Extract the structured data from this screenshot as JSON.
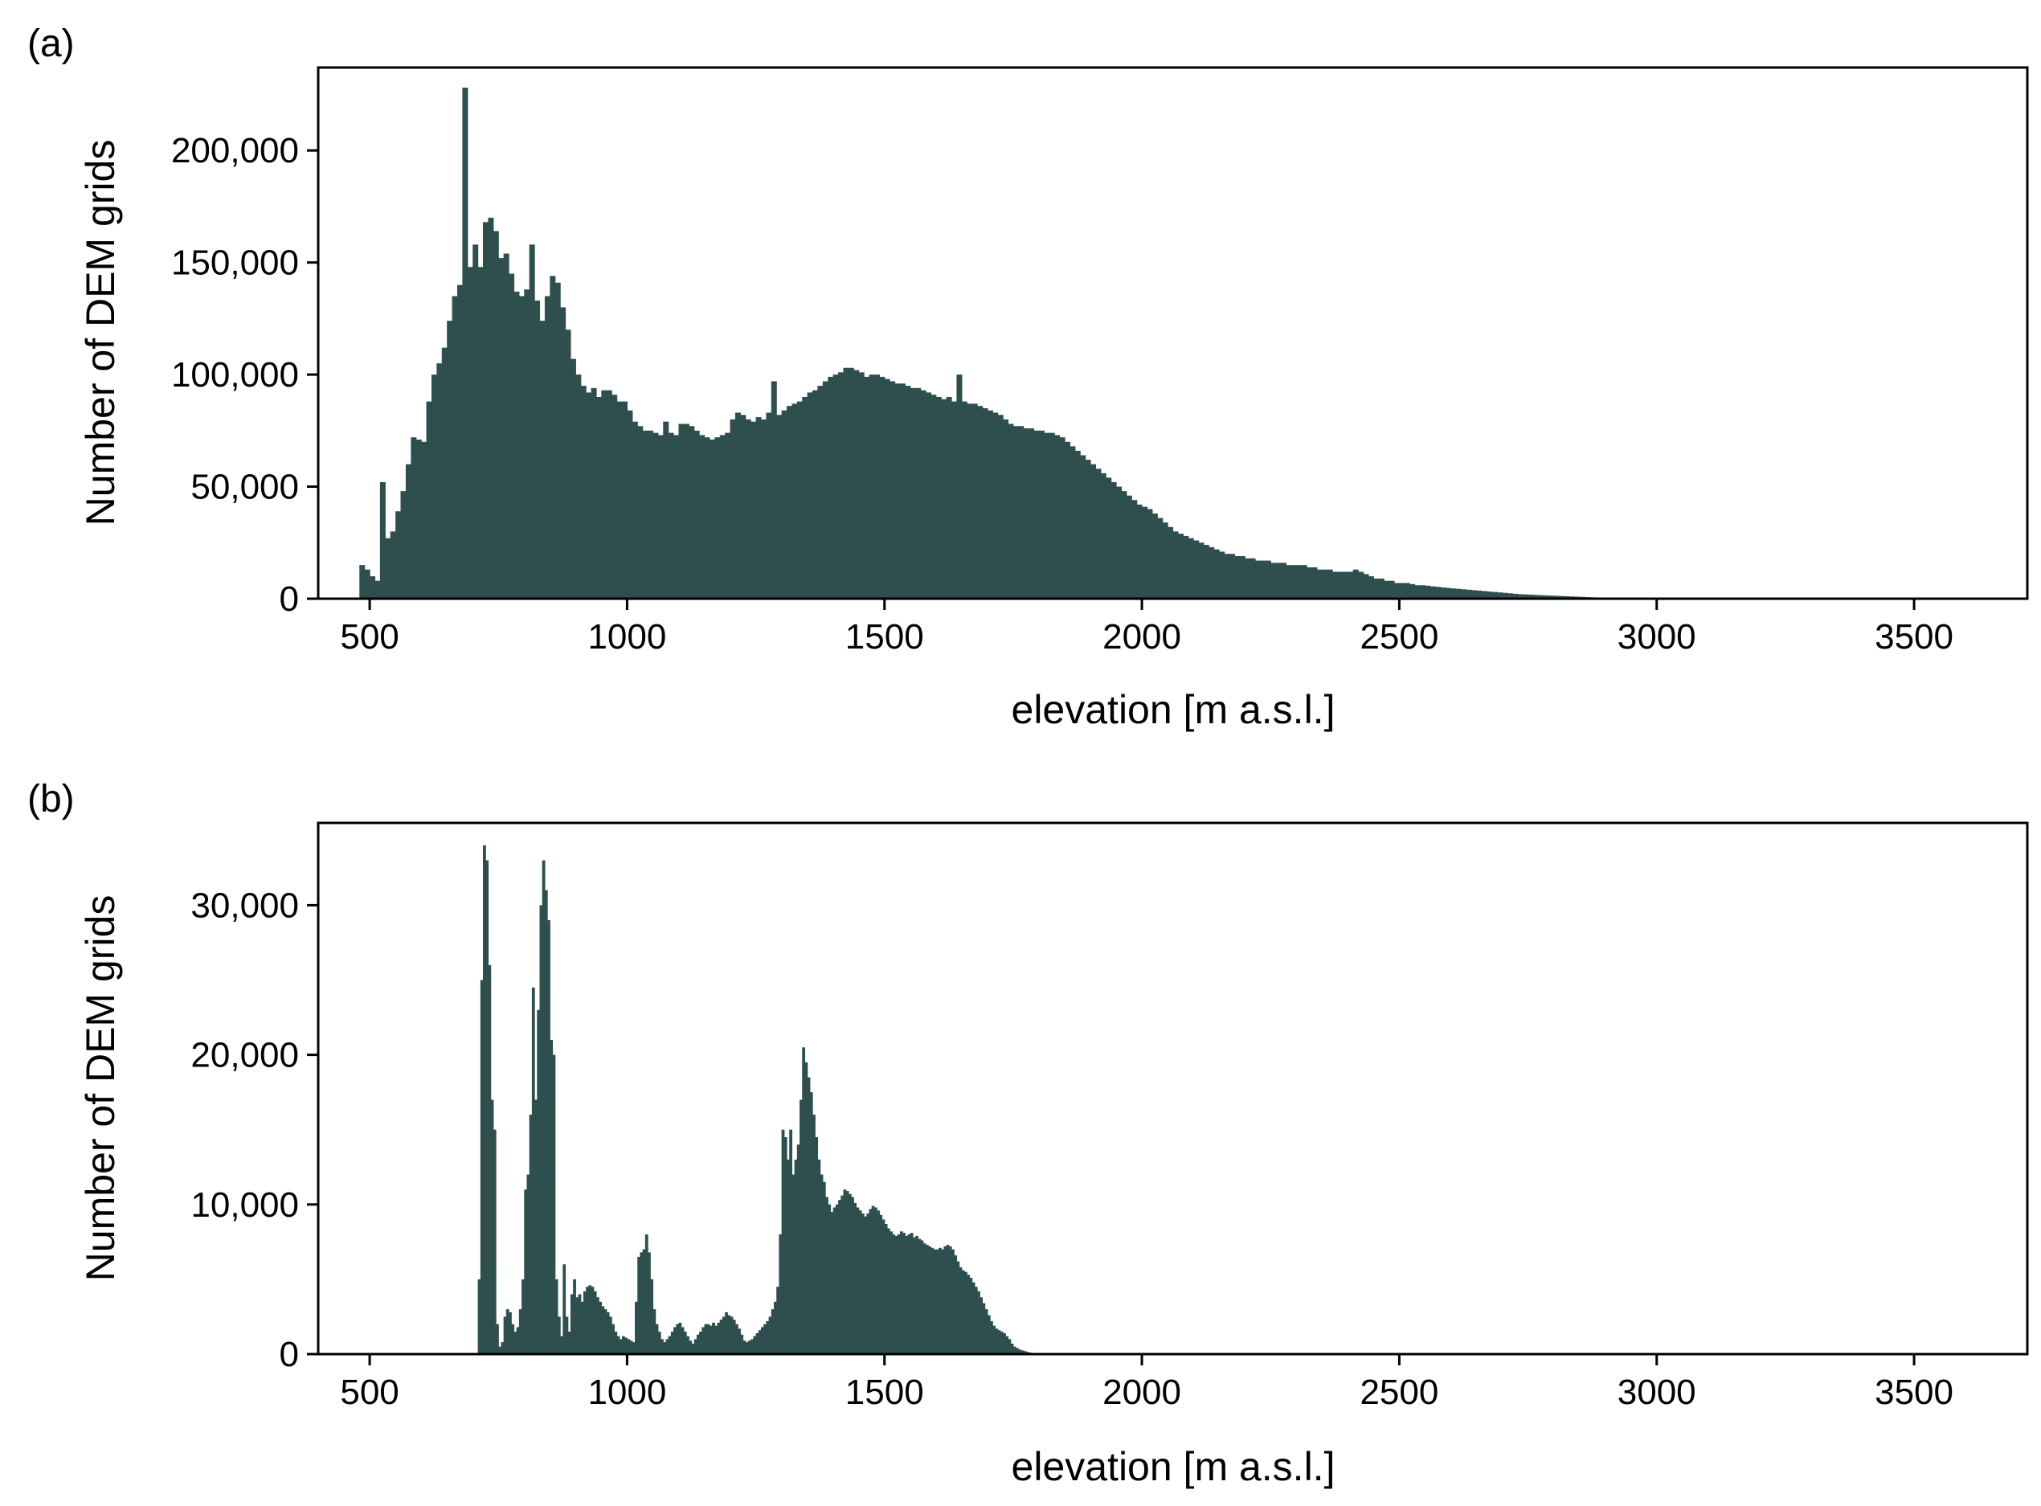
{
  "chart_data": [
    {
      "panel_label": "(a)",
      "type": "bar",
      "xlabel": "elevation [m a.s.l.]",
      "ylabel": "Number of DEM grids",
      "xlim": [
        400,
        3720
      ],
      "ylim": [
        0,
        237000
      ],
      "x_ticks": [
        500,
        1000,
        1500,
        2000,
        2500,
        3000,
        3500
      ],
      "x_tick_labels": [
        "500",
        "1000",
        "1500",
        "2000",
        "2500",
        "3000",
        "3500"
      ],
      "y_ticks": [
        0,
        50000,
        100000,
        150000,
        200000
      ],
      "y_tick_labels": [
        "0",
        "50,000",
        "100,000",
        "150,000",
        "200,000"
      ],
      "bin_width": 10,
      "bar_color": "#2f4f4f",
      "x_start": 480,
      "values": [
        15000,
        13000,
        10000,
        8000,
        52000,
        27000,
        30000,
        39000,
        48000,
        60000,
        72000,
        71000,
        70000,
        88000,
        100000,
        105000,
        112000,
        124000,
        135000,
        140000,
        228000,
        148000,
        158000,
        148000,
        168000,
        170000,
        164000,
        152000,
        154000,
        145000,
        137000,
        135000,
        138000,
        158000,
        133000,
        124000,
        135000,
        144000,
        141000,
        130000,
        120000,
        107000,
        100000,
        95000,
        92000,
        94000,
        90000,
        93000,
        93000,
        91000,
        88000,
        88000,
        84000,
        79000,
        77000,
        75000,
        75000,
        74000,
        73000,
        79000,
        74000,
        73000,
        78000,
        78000,
        77000,
        75000,
        73000,
        72000,
        71000,
        72000,
        73000,
        74000,
        80000,
        83000,
        82000,
        80000,
        79000,
        81000,
        80000,
        83000,
        97000,
        82000,
        84000,
        86000,
        87000,
        88000,
        90000,
        92000,
        93000,
        95000,
        97000,
        99000,
        100000,
        101000,
        103000,
        103000,
        102000,
        101000,
        99000,
        100000,
        100000,
        99000,
        98000,
        97000,
        96000,
        96000,
        95000,
        94000,
        94000,
        93000,
        92000,
        91000,
        90000,
        89000,
        90000,
        88000,
        100000,
        88000,
        87000,
        87000,
        86000,
        85000,
        84000,
        83000,
        82000,
        80000,
        78000,
        77000,
        77000,
        76000,
        76000,
        75000,
        75000,
        74000,
        74000,
        73000,
        72000,
        70000,
        68000,
        66000,
        64000,
        62000,
        60000,
        58000,
        56000,
        54000,
        52000,
        50000,
        48000,
        46000,
        44000,
        42000,
        41000,
        40000,
        38000,
        36000,
        34000,
        32000,
        30000,
        29000,
        28000,
        27000,
        26000,
        25000,
        24000,
        23000,
        22000,
        21000,
        20000,
        20000,
        19000,
        19000,
        18000,
        18000,
        17000,
        17000,
        17000,
        16000,
        16000,
        16000,
        15000,
        15000,
        15000,
        15000,
        14000,
        14000,
        13000,
        13000,
        13000,
        12000,
        12000,
        12000,
        12000,
        13000,
        12000,
        11000,
        10000,
        9000,
        9000,
        8000,
        8000,
        7000,
        7000,
        7000,
        6500,
        6000,
        6000,
        5800,
        5500,
        5300,
        5000,
        4800,
        4600,
        4400,
        4200,
        4000,
        3800,
        3600,
        3400,
        3200,
        3000,
        2800,
        2600,
        2400,
        2200,
        2000,
        1900,
        1800,
        1700,
        1600,
        1500,
        1400,
        1300,
        1200,
        1100,
        1000,
        900,
        800,
        700,
        600,
        550,
        500,
        450,
        400,
        350,
        300,
        250,
        200,
        150,
        100
      ]
    },
    {
      "panel_label": "(b)",
      "type": "bar",
      "xlabel": "elevation [m a.s.l.]",
      "ylabel": "Number of DEM grids",
      "xlim": [
        400,
        3720
      ],
      "ylim": [
        0,
        35500
      ],
      "x_ticks": [
        500,
        1000,
        1500,
        2000,
        2500,
        3000,
        3500
      ],
      "x_tick_labels": [
        "500",
        "1000",
        "1500",
        "2000",
        "2500",
        "3000",
        "3500"
      ],
      "y_ticks": [
        0,
        10000,
        20000,
        30000
      ],
      "y_tick_labels": [
        "0",
        "10,000",
        "20,000",
        "30,000"
      ],
      "bin_width": 5,
      "bar_color": "#2f4f4f",
      "x_start": 710,
      "values": [
        5000,
        25000,
        34000,
        33000,
        26000,
        17000,
        15000,
        2000,
        500,
        800,
        2500,
        3000,
        2800,
        2000,
        1500,
        1800,
        3000,
        5000,
        11000,
        12000,
        16000,
        24500,
        17000,
        23000,
        30000,
        33000,
        31000,
        29000,
        21000,
        20000,
        5000,
        2500,
        1200,
        6000,
        2500,
        1500,
        4000,
        5000,
        3800,
        4000,
        3500,
        4200,
        4500,
        4600,
        4500,
        4200,
        3800,
        3500,
        3200,
        3000,
        2800,
        2500,
        2000,
        1500,
        1200,
        1000,
        1200,
        1100,
        1000,
        900,
        800,
        3500,
        6500,
        6800,
        7000,
        8000,
        6800,
        5000,
        3000,
        2000,
        1500,
        1000,
        800,
        1000,
        1200,
        1500,
        1800,
        2000,
        2100,
        1800,
        1500,
        1200,
        900,
        700,
        1000,
        1300,
        1500,
        1800,
        2000,
        2000,
        1900,
        2100,
        1900,
        2100,
        2300,
        2500,
        2800,
        2600,
        2500,
        2300,
        2000,
        1700,
        1300,
        900,
        800,
        900,
        1000,
        1200,
        1400,
        1600,
        1800,
        2000,
        2200,
        2500,
        3000,
        3500,
        4500,
        8000,
        15000,
        14500,
        13000,
        15000,
        12000,
        13000,
        14000,
        17000,
        20500,
        19500,
        18500,
        17500,
        16000,
        14500,
        13000,
        12000,
        11500,
        10500,
        10000,
        9500,
        9800,
        10000,
        10300,
        10600,
        11000,
        10900,
        10700,
        10500,
        10100,
        9800,
        9600,
        9400,
        9200,
        9400,
        9700,
        9900,
        9800,
        9600,
        9300,
        9000,
        8700,
        8400,
        8200,
        8000,
        7900,
        8000,
        8200,
        8100,
        7900,
        8000,
        8100,
        7800,
        7900,
        7700,
        7600,
        7400,
        7300,
        7200,
        7100,
        7000,
        7000,
        7100,
        7000,
        7200,
        7300,
        7200,
        7000,
        6600,
        6200,
        5800,
        5600,
        5500,
        5300,
        5100,
        4800,
        4500,
        4200,
        3800,
        3400,
        3000,
        2600,
        2200,
        1900,
        1700,
        1600,
        1500,
        1400,
        1200,
        1000,
        700,
        500,
        400,
        300,
        250,
        200,
        150,
        100
      ]
    }
  ]
}
